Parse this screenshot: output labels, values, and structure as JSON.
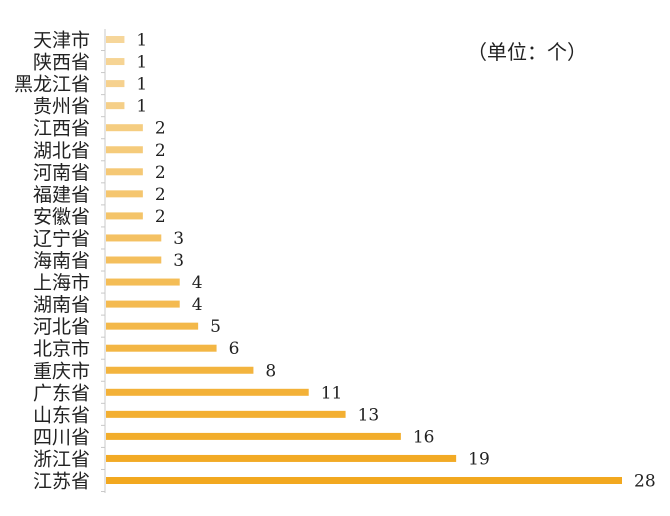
{
  "chart_data": {
    "type": "bar",
    "orientation": "horizontal",
    "title": "",
    "unit_label": "（单位：个）",
    "xlabel": "",
    "ylabel": "",
    "xlim": [
      0,
      28
    ],
    "grid": false,
    "categories": [
      "天津市",
      "陕西省",
      "黑龙江省",
      "贵州省",
      "江西省",
      "湖北省",
      "河南省",
      "福建省",
      "安徽省",
      "辽宁省",
      "海南省",
      "上海市",
      "湖南省",
      "河北省",
      "北京市",
      "重庆市",
      "广东省",
      "山东省",
      "四川省",
      "浙江省",
      "江苏省"
    ],
    "values": [
      1,
      1,
      1,
      1,
      2,
      2,
      2,
      2,
      2,
      3,
      3,
      4,
      4,
      5,
      6,
      8,
      11,
      13,
      16,
      19,
      28
    ],
    "colors": {
      "bar_min": "#f6d69a",
      "bar_max": "#f2a81f",
      "axis": "#c8c8c8",
      "text": "#222222"
    }
  }
}
